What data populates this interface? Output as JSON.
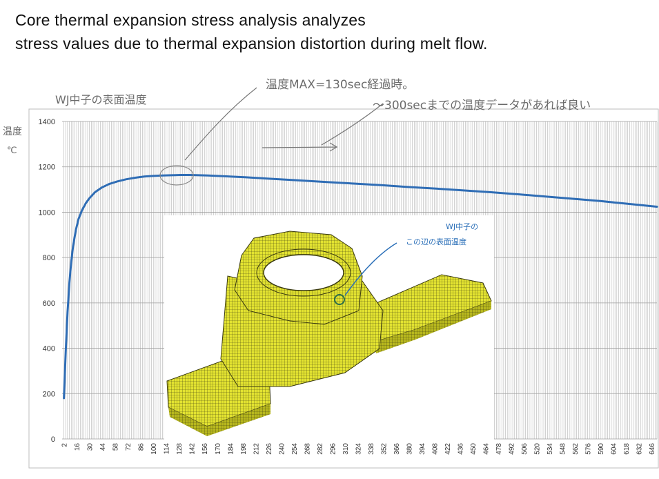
{
  "heading": {
    "line1": "Core thermal expansion stress analysis analyzes",
    "line2": "stress values due to thermal expansion distortion during melt flow."
  },
  "annotations": {
    "surface_temp": "WJ中子の表面温度",
    "max_note": "温度MAX=130sec経過時。",
    "data_request": "～300secまでの温度データがあれば良い",
    "y_unit_top": "温度",
    "y_unit_bottom": "℃",
    "inset_label_line1": "WJ中子の",
    "inset_label_line2": "この辺の表面温度"
  },
  "colors": {
    "series": "#2f6db5",
    "grid": "#b4b4b4",
    "mesh": "#e6e62e",
    "mesh_line": "#3a3a10",
    "annotation": "#6b6b6b",
    "inset_annotation": "#2b6fb8",
    "marker": "#2a6d4a"
  },
  "chart_data": {
    "type": "line",
    "y_ticks": [
      "0",
      "200",
      "400",
      "600",
      "800",
      "1000",
      "1200",
      "1400"
    ],
    "ylim": [
      0,
      1400
    ],
    "x_ticks": [
      "2",
      "16",
      "30",
      "44",
      "58",
      "72",
      "86",
      "100",
      "114",
      "128",
      "142",
      "156",
      "170",
      "184",
      "198",
      "212",
      "226",
      "240",
      "254",
      "268",
      "282",
      "296",
      "310",
      "324",
      "338",
      "352",
      "366",
      "380",
      "394",
      "408",
      "422",
      "436",
      "450",
      "464",
      "478",
      "492",
      "506",
      "520",
      "534",
      "548",
      "562",
      "576",
      "590",
      "604",
      "618",
      "632",
      "646"
    ],
    "xlim": [
      0,
      652
    ],
    "grid": true,
    "x": [
      2,
      4,
      6,
      8,
      10,
      12,
      15,
      18,
      22,
      26,
      30,
      36,
      44,
      52,
      60,
      70,
      80,
      90,
      100,
      110,
      120,
      130,
      140,
      150,
      160,
      180,
      200,
      230,
      260,
      290,
      320,
      350,
      380,
      410,
      440,
      470,
      500,
      530,
      560,
      590,
      620,
      652
    ],
    "y": [
      180,
      390,
      560,
      690,
      780,
      850,
      920,
      970,
      1010,
      1040,
      1062,
      1088,
      1110,
      1125,
      1135,
      1145,
      1152,
      1157,
      1160,
      1162,
      1163,
      1164,
      1164,
      1163,
      1162,
      1158,
      1154,
      1147,
      1140,
      1133,
      1126,
      1119,
      1111,
      1104,
      1096,
      1088,
      1079,
      1069,
      1059,
      1049,
      1037,
      1024
    ]
  }
}
